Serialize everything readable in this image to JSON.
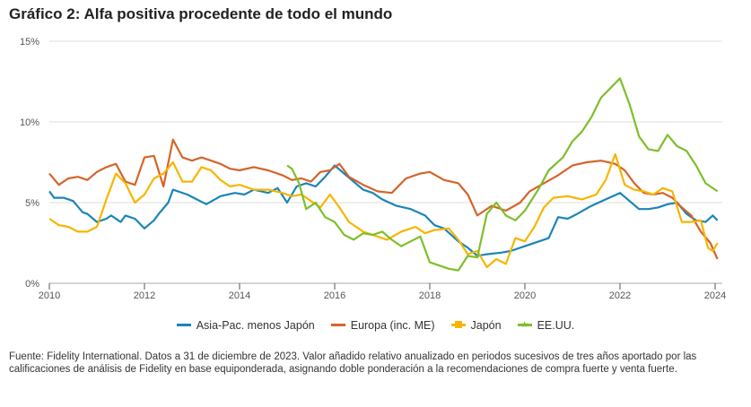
{
  "title": "Gráfico 2: Alfa positiva procedente de todo el mundo",
  "footer": "Fuente: Fidelity International. Datos a 31 de diciembre de 2023. Valor añadido relativo anualizado en periodos sucesivos de tres años aportado por las calificaciones de análisis de Fidelity en base equiponderada, asignando doble ponderación a la recomendaciones de compra fuerte y venta fuerte.",
  "chart_data": {
    "type": "line",
    "title": "Gráfico 2: Alfa positiva procedente de todo el mundo",
    "xlabel": "",
    "ylabel": "",
    "xlim": [
      2010,
      2024.15
    ],
    "ylim": [
      0,
      15
    ],
    "x_ticks": [
      2010,
      2012,
      2014,
      2016,
      2018,
      2020,
      2022,
      2024
    ],
    "x_tick_labels": [
      "2010",
      "2012",
      "2014",
      "2016",
      "2018",
      "2020",
      "2022",
      "2024"
    ],
    "y_ticks": [
      0,
      5,
      10,
      15
    ],
    "y_tick_labels": [
      "0%",
      "5%",
      "10%",
      "15%"
    ],
    "grid": true,
    "legend_position": "bottom",
    "series": [
      {
        "name": "Asia-Pac. menos Japón",
        "color": "#1a85b8",
        "x": [
          2010.0,
          2010.1,
          2010.3,
          2010.5,
          2010.7,
          2010.8,
          2011.0,
          2011.2,
          2011.3,
          2011.5,
          2011.6,
          2011.8,
          2012.0,
          2012.2,
          2012.3,
          2012.5,
          2012.6,
          2012.9,
          2013.1,
          2013.3,
          2013.6,
          2013.9,
          2014.1,
          2014.3,
          2014.6,
          2014.8,
          2015.0,
          2015.2,
          2015.4,
          2015.6,
          2015.8,
          2016.0,
          2016.2,
          2016.4,
          2016.6,
          2016.8,
          2017.0,
          2017.3,
          2017.6,
          2017.9,
          2018.1,
          2018.3,
          2018.6,
          2018.8,
          2019.0,
          2019.2,
          2019.5,
          2019.7,
          2020.0,
          2020.3,
          2020.5,
          2020.7,
          2020.9,
          2021.1,
          2021.4,
          2021.7,
          2022.0,
          2022.2,
          2022.4,
          2022.6,
          2022.8,
          2023.0,
          2023.2,
          2023.4,
          2023.6,
          2023.8,
          2023.95,
          2024.05
        ],
        "y": [
          5.7,
          5.3,
          5.3,
          5.1,
          4.4,
          4.3,
          3.8,
          4.0,
          4.2,
          3.8,
          4.2,
          4.0,
          3.4,
          3.9,
          4.3,
          5.0,
          5.8,
          5.5,
          5.2,
          4.9,
          5.4,
          5.6,
          5.5,
          5.8,
          5.6,
          5.9,
          5.0,
          6.0,
          6.2,
          6.0,
          6.6,
          7.3,
          6.8,
          6.3,
          5.8,
          5.6,
          5.2,
          4.8,
          4.6,
          4.2,
          3.6,
          3.4,
          2.6,
          2.2,
          1.7,
          1.8,
          1.9,
          2.0,
          2.3,
          2.6,
          2.8,
          4.1,
          4.0,
          4.3,
          4.8,
          5.2,
          5.6,
          5.1,
          4.6,
          4.6,
          4.7,
          4.9,
          5.0,
          4.3,
          3.9,
          3.8,
          4.2,
          3.9
        ]
      },
      {
        "name": "Europa (inc. ME)",
        "color": "#d4642a",
        "x": [
          2010.0,
          2010.2,
          2010.4,
          2010.6,
          2010.8,
          2011.0,
          2011.2,
          2011.4,
          2011.6,
          2011.8,
          2012.0,
          2012.2,
          2012.4,
          2012.6,
          2012.8,
          2013.0,
          2013.2,
          2013.4,
          2013.6,
          2013.8,
          2014.0,
          2014.3,
          2014.6,
          2014.9,
          2015.1,
          2015.3,
          2015.5,
          2015.7,
          2015.9,
          2016.1,
          2016.3,
          2016.6,
          2016.9,
          2017.2,
          2017.5,
          2017.8,
          2018.0,
          2018.3,
          2018.6,
          2018.8,
          2019.0,
          2019.3,
          2019.6,
          2019.9,
          2020.1,
          2020.4,
          2020.7,
          2021.0,
          2021.3,
          2021.6,
          2021.9,
          2022.1,
          2022.3,
          2022.5,
          2022.7,
          2022.9,
          2023.1,
          2023.3,
          2023.5,
          2023.7,
          2023.9,
          2024.05
        ],
        "y": [
          6.8,
          6.1,
          6.5,
          6.6,
          6.4,
          6.9,
          7.2,
          7.4,
          6.3,
          6.1,
          7.8,
          7.9,
          6.0,
          8.9,
          7.8,
          7.6,
          7.8,
          7.6,
          7.4,
          7.1,
          7.0,
          7.2,
          7.0,
          6.7,
          6.4,
          6.5,
          6.3,
          6.9,
          7.0,
          7.4,
          6.6,
          6.1,
          5.7,
          5.6,
          6.5,
          6.8,
          6.9,
          6.4,
          6.2,
          5.5,
          4.2,
          4.8,
          4.5,
          5.0,
          5.7,
          6.2,
          6.7,
          7.3,
          7.5,
          7.6,
          7.4,
          7.0,
          6.2,
          5.6,
          5.5,
          5.6,
          5.3,
          4.7,
          4.2,
          3.2,
          2.5,
          1.5
        ]
      },
      {
        "name": "Japón",
        "color": "#f7b500",
        "x": [
          2010.0,
          2010.2,
          2010.4,
          2010.6,
          2010.8,
          2011.0,
          2011.2,
          2011.4,
          2011.6,
          2011.8,
          2012.0,
          2012.2,
          2012.4,
          2012.6,
          2012.8,
          2013.0,
          2013.2,
          2013.4,
          2013.6,
          2013.8,
          2014.0,
          2014.3,
          2014.6,
          2014.9,
          2015.1,
          2015.3,
          2015.5,
          2015.7,
          2015.9,
          2016.1,
          2016.3,
          2016.6,
          2016.9,
          2017.1,
          2017.4,
          2017.7,
          2017.9,
          2018.1,
          2018.4,
          2018.6,
          2018.8,
          2019.0,
          2019.2,
          2019.4,
          2019.6,
          2019.8,
          2020.0,
          2020.2,
          2020.4,
          2020.6,
          2020.9,
          2021.2,
          2021.5,
          2021.7,
          2021.9,
          2022.1,
          2022.3,
          2022.5,
          2022.7,
          2022.9,
          2023.1,
          2023.3,
          2023.5,
          2023.7,
          2023.85,
          2023.95,
          2024.05
        ],
        "y": [
          4.0,
          3.6,
          3.5,
          3.2,
          3.2,
          3.5,
          5.2,
          6.8,
          6.2,
          5.0,
          5.5,
          6.5,
          6.8,
          7.5,
          6.3,
          6.3,
          7.2,
          7.0,
          6.4,
          6.0,
          6.1,
          5.8,
          5.8,
          5.6,
          5.4,
          5.5,
          5.1,
          4.7,
          5.5,
          4.7,
          3.8,
          3.2,
          2.9,
          2.7,
          3.2,
          3.5,
          3.1,
          3.3,
          3.4,
          2.7,
          1.8,
          2.0,
          1.0,
          1.5,
          1.2,
          2.8,
          2.6,
          3.5,
          4.7,
          5.3,
          5.4,
          5.2,
          5.5,
          6.4,
          8.0,
          6.1,
          5.8,
          5.7,
          5.5,
          5.9,
          5.7,
          3.8,
          3.8,
          3.9,
          2.2,
          2.0,
          2.5
        ]
      },
      {
        "name": "EE.UU.",
        "color": "#7dbf2a",
        "x": [
          2015.0,
          2015.1,
          2015.25,
          2015.4,
          2015.6,
          2015.8,
          2016.0,
          2016.2,
          2016.4,
          2016.6,
          2016.8,
          2017.0,
          2017.2,
          2017.4,
          2017.6,
          2017.8,
          2018.0,
          2018.2,
          2018.4,
          2018.6,
          2018.8,
          2019.0,
          2019.2,
          2019.4,
          2019.6,
          2019.8,
          2020.0,
          2020.3,
          2020.5,
          2020.8,
          2021.0,
          2021.2,
          2021.4,
          2021.6,
          2021.8,
          2022.0,
          2022.2,
          2022.4,
          2022.6,
          2022.8,
          2023.0,
          2023.2,
          2023.4,
          2023.6,
          2023.8,
          2024.05
        ],
        "y": [
          7.3,
          7.1,
          6.2,
          4.6,
          5.0,
          4.1,
          3.8,
          3.0,
          2.7,
          3.1,
          3.0,
          3.2,
          2.7,
          2.3,
          2.6,
          2.9,
          1.3,
          1.1,
          0.9,
          0.8,
          1.7,
          1.6,
          4.3,
          5.0,
          4.2,
          3.9,
          4.5,
          5.9,
          7.0,
          7.8,
          8.8,
          9.4,
          10.3,
          11.5,
          12.1,
          12.7,
          11.1,
          9.1,
          8.3,
          8.2,
          9.2,
          8.5,
          8.2,
          7.3,
          6.2,
          5.7
        ]
      }
    ]
  }
}
